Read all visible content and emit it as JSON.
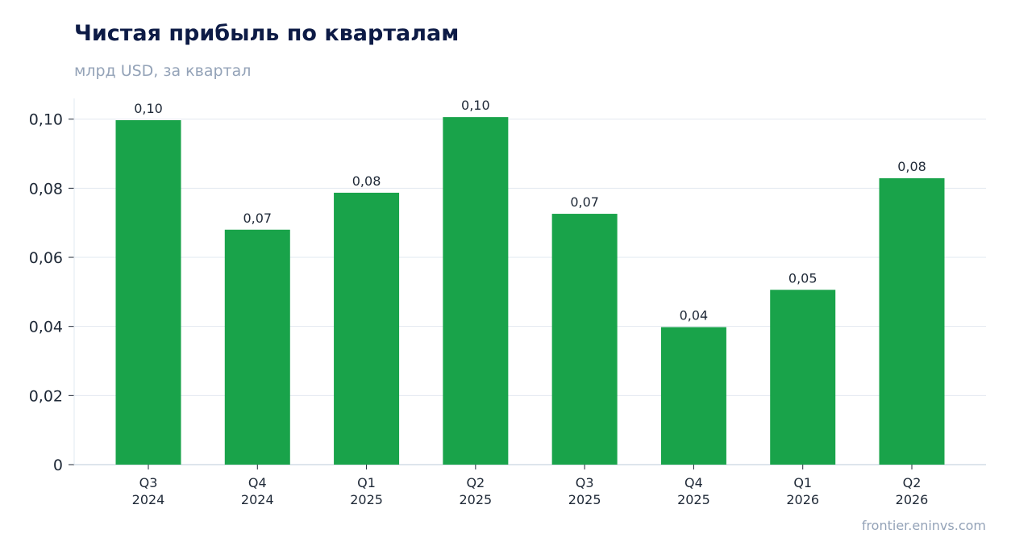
{
  "title": "Чистая прибыль по кварталам",
  "subtitle": "млрд USD, за квартал",
  "source": "frontier.eninvs.com",
  "colors": {
    "bar": "#19a34a",
    "grid": "#e2e8f0",
    "axis": "#cbd5e1"
  },
  "chart_data": {
    "type": "bar",
    "title": "Чистая прибыль по кварталам",
    "subtitle": "млрд USD, за квартал",
    "categories": [
      [
        "Q3",
        "2024"
      ],
      [
        "Q4",
        "2024"
      ],
      [
        "Q1",
        "2025"
      ],
      [
        "Q2",
        "2025"
      ],
      [
        "Q3",
        "2025"
      ],
      [
        "Q4",
        "2025"
      ],
      [
        "Q1",
        "2026"
      ],
      [
        "Q2",
        "2026"
      ]
    ],
    "values": [
      0.0997,
      0.068,
      0.0787,
      0.1006,
      0.0726,
      0.0398,
      0.0506,
      0.0829
    ],
    "data_labels": [
      "0,10",
      "0,07",
      "0,08",
      "0,10",
      "0,07",
      "0,04",
      "0,05",
      "0,08"
    ],
    "yticks": [
      {
        "value": 0,
        "label": "0"
      },
      {
        "value": 0.02,
        "label": "0,02"
      },
      {
        "value": 0.04,
        "label": "0,04"
      },
      {
        "value": 0.06,
        "label": "0,06"
      },
      {
        "value": 0.08,
        "label": "0,08"
      },
      {
        "value": 0.1,
        "label": "0,10"
      }
    ],
    "ylim": [
      0,
      0.106
    ],
    "grid": true,
    "legend": "none"
  }
}
